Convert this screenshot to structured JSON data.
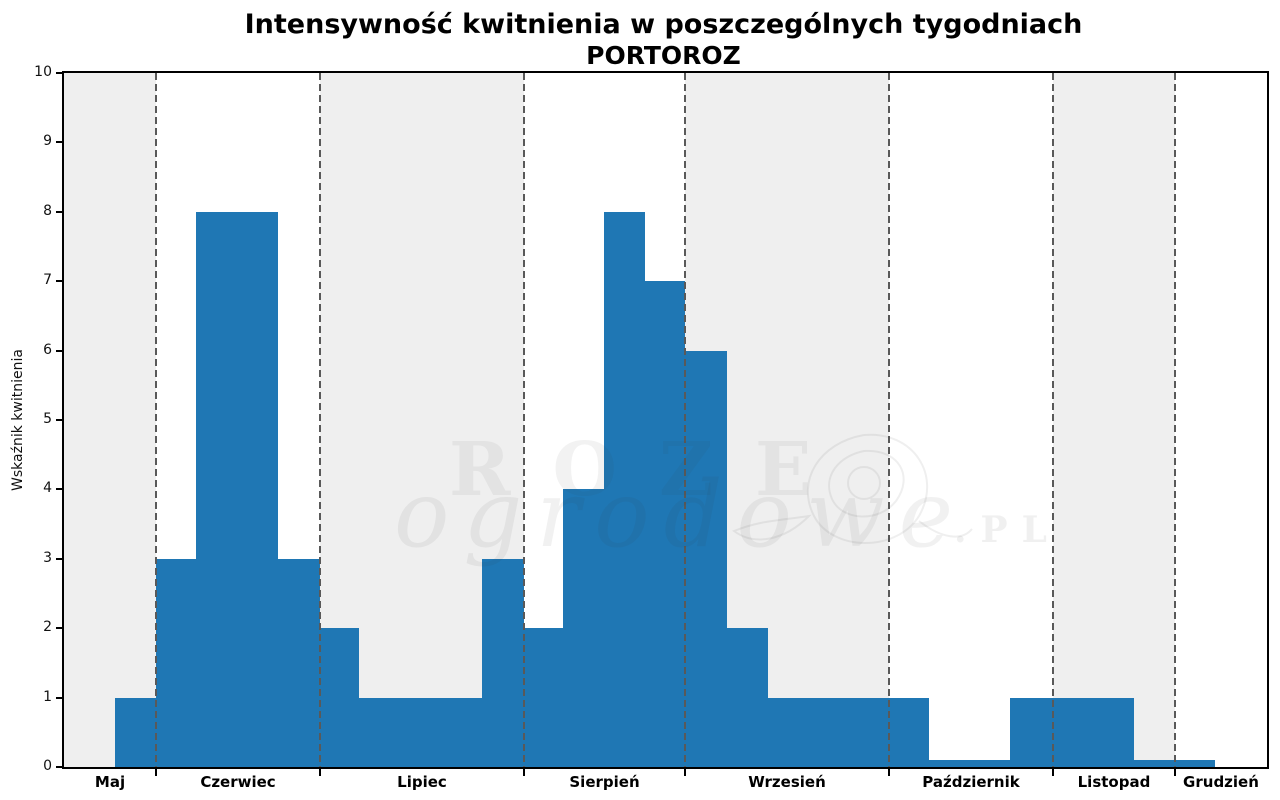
{
  "title": {
    "line1": "Intensywność kwitnienia w poszczególnych tygodniach",
    "line2": "PORTOROZ"
  },
  "y_axis": {
    "label": "Wskaźnik kwitnienia",
    "ticks": [
      0,
      1,
      2,
      3,
      4,
      5,
      6,
      7,
      8,
      9,
      10
    ]
  },
  "watermark": {
    "word1": "ROZE",
    "word2": "ogrodowe",
    "word3": ".PL",
    "flower_icon": "rose-outline"
  },
  "colors": {
    "bar": "#1f77b4",
    "band_shaded": "#efefef",
    "band_plain": "#ffffff",
    "boundary_dash": "#595959",
    "spine": "#000000",
    "title_text": "#000000"
  },
  "chart_data": {
    "type": "bar",
    "title": "Intensywność kwitnienia w poszczególnych tygodniach",
    "subtitle": "PORTOROZ",
    "xlabel": "",
    "ylabel": "Wskaźnik kwitnienia",
    "ylim": [
      0,
      10
    ],
    "y_ticks": [
      0,
      1,
      2,
      3,
      4,
      5,
      6,
      7,
      8,
      9,
      10
    ],
    "legend": "none",
    "grid": "off",
    "bar_color": "#1f77b4",
    "note": "weekly flowering-intensity histogram; bar positions stored as percent of x-axis width",
    "months": [
      {
        "name": "Maj",
        "start_pct": 0.0,
        "end_pct": 7.65,
        "shaded": true
      },
      {
        "name": "Czerwiec",
        "start_pct": 7.65,
        "end_pct": 21.28,
        "shaded": false
      },
      {
        "name": "Lipiec",
        "start_pct": 21.28,
        "end_pct": 38.24,
        "shaded": true
      },
      {
        "name": "Sierpień",
        "start_pct": 38.24,
        "end_pct": 51.62,
        "shaded": false
      },
      {
        "name": "Wrzesień",
        "start_pct": 51.62,
        "end_pct": 68.58,
        "shaded": true
      },
      {
        "name": "Październik",
        "start_pct": 68.58,
        "end_pct": 82.21,
        "shaded": false
      },
      {
        "name": "Listopad",
        "start_pct": 82.21,
        "end_pct": 92.35,
        "shaded": true
      },
      {
        "name": "Grudzień",
        "start_pct": 92.35,
        "end_pct": 100.0,
        "shaded": false
      }
    ],
    "boundary_pcts": [
      7.65,
      21.28,
      38.24,
      51.62,
      68.58,
      82.21,
      92.35
    ],
    "bars": [
      {
        "start_pct": 4.24,
        "end_pct": 7.65,
        "value": 1,
        "month": "Maj"
      },
      {
        "start_pct": 7.65,
        "end_pct": 10.97,
        "value": 3,
        "month": "Czerwiec"
      },
      {
        "start_pct": 10.97,
        "end_pct": 17.79,
        "value": 8,
        "month": "Czerwiec"
      },
      {
        "start_pct": 17.79,
        "end_pct": 21.28,
        "value": 3,
        "month": "Czerwiec"
      },
      {
        "start_pct": 21.28,
        "end_pct": 24.52,
        "value": 2,
        "month": "Lipiec"
      },
      {
        "start_pct": 24.52,
        "end_pct": 34.75,
        "value": 1,
        "month": "Lipiec"
      },
      {
        "start_pct": 34.75,
        "end_pct": 38.24,
        "value": 3,
        "month": "Lipiec"
      },
      {
        "start_pct": 38.24,
        "end_pct": 41.48,
        "value": 2,
        "month": "Sierpień"
      },
      {
        "start_pct": 41.48,
        "end_pct": 44.89,
        "value": 4,
        "month": "Sierpień"
      },
      {
        "start_pct": 44.89,
        "end_pct": 48.3,
        "value": 8,
        "month": "Sierpień"
      },
      {
        "start_pct": 48.3,
        "end_pct": 51.62,
        "value": 7,
        "month": "Sierpień"
      },
      {
        "start_pct": 51.62,
        "end_pct": 55.11,
        "value": 6,
        "month": "Wrzesień"
      },
      {
        "start_pct": 55.11,
        "end_pct": 58.52,
        "value": 2,
        "month": "Wrzesień"
      },
      {
        "start_pct": 58.52,
        "end_pct": 71.9,
        "value": 1,
        "month": "Wrzesień/Październik"
      },
      {
        "start_pct": 71.9,
        "end_pct": 78.64,
        "value": 0.1,
        "month": "Październik"
      },
      {
        "start_pct": 78.64,
        "end_pct": 88.95,
        "value": 1,
        "month": "Październik/Listopad"
      },
      {
        "start_pct": 88.95,
        "end_pct": 95.68,
        "value": 0.1,
        "month": "Listopad/Grudzień"
      },
      {
        "start_pct": 95.68,
        "end_pct": 100.0,
        "value": 0,
        "month": "Grudzień"
      }
    ]
  }
}
